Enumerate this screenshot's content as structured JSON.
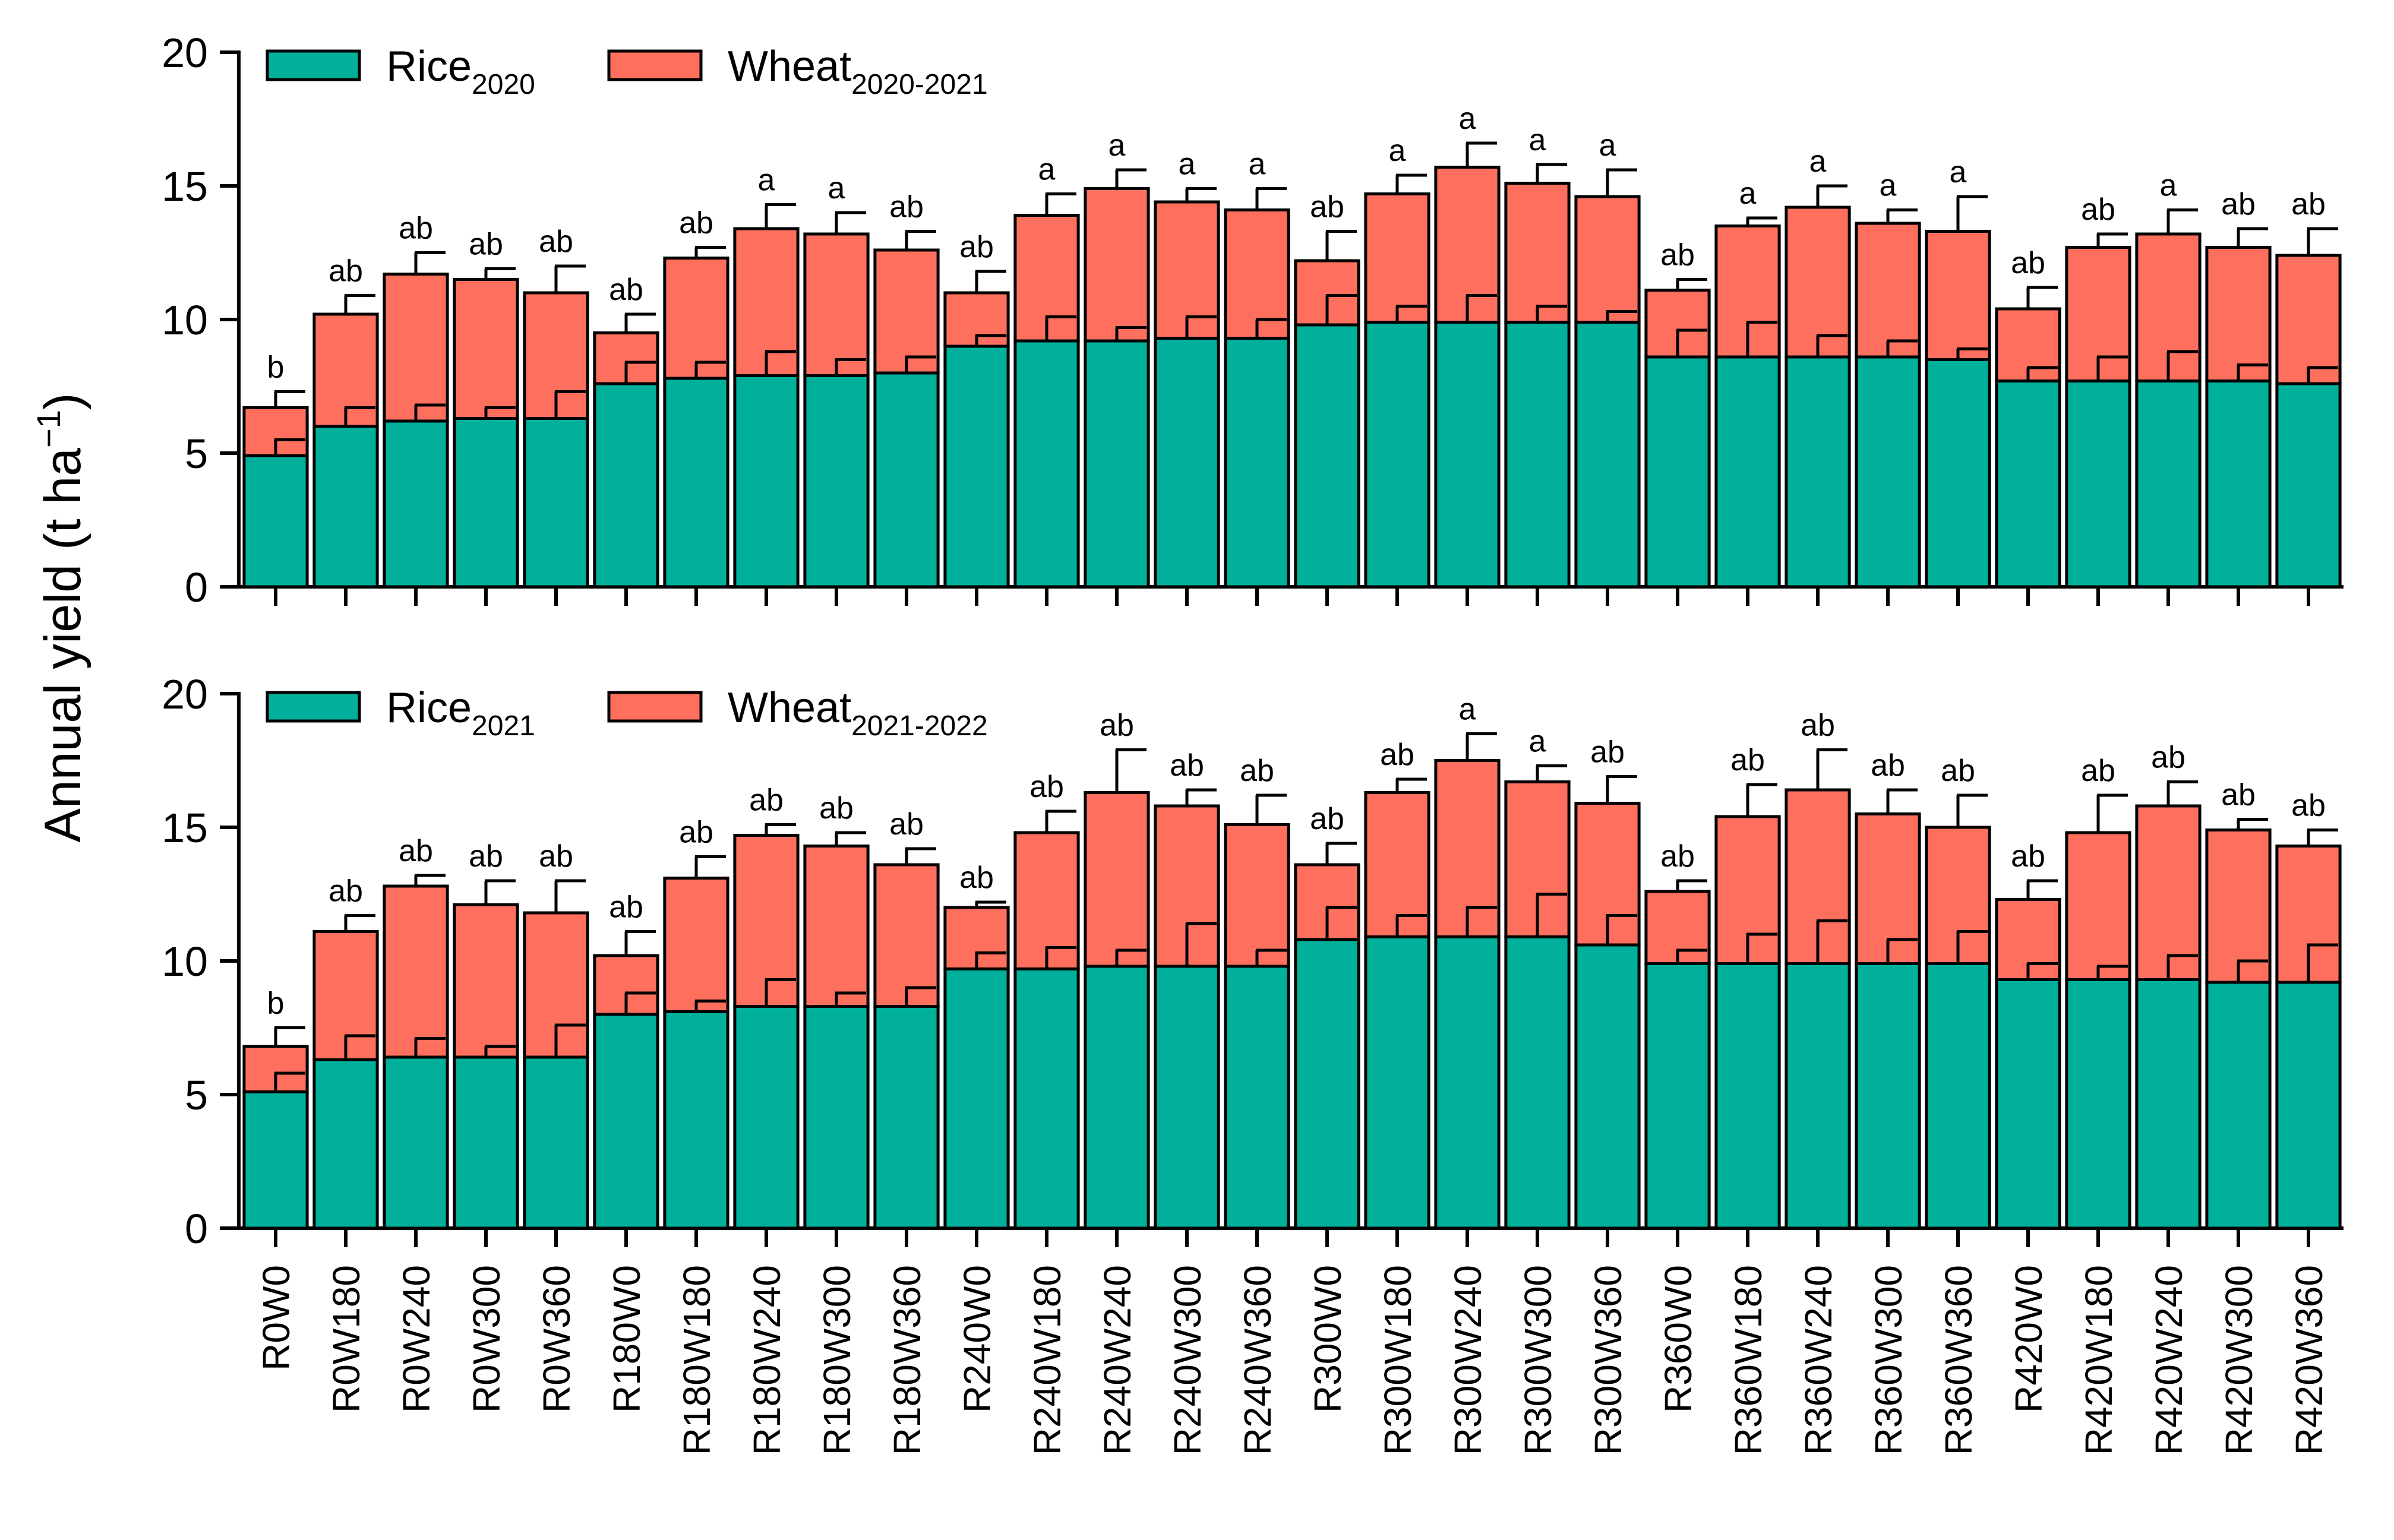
{
  "chart_data": {
    "type": "bar",
    "stacked": true,
    "ylabel": "Annual yield (t ha",
    "ylabel_sup": "−1",
    "ylabel_suffix": ")",
    "ylim": [
      0,
      20
    ],
    "yticks": [
      0,
      5,
      10,
      15,
      20
    ],
    "colors": {
      "rice": "#00B09B",
      "wheat": "#FF6F5E"
    },
    "categories": [
      "R0W0",
      "R0W180",
      "R0W240",
      "R0W300",
      "R0W360",
      "R180W0",
      "R180W180",
      "R180W240",
      "R180W300",
      "R180W360",
      "R240W0",
      "R240W180",
      "R240W240",
      "R240W300",
      "R240W360",
      "R300W0",
      "R300W180",
      "R300W240",
      "R300W300",
      "R300W360",
      "R360W0",
      "R360W180",
      "R360W240",
      "R360W300",
      "R360W360",
      "R420W0",
      "R420W180",
      "R420W240",
      "R420W300",
      "R420W360"
    ],
    "panels": [
      {
        "legend": [
          {
            "base": "Rice",
            "sub": "2020"
          },
          {
            "base": "Wheat",
            "sub": "2020-2021"
          }
        ],
        "series": [
          {
            "name": "Rice2020",
            "values": [
              4.9,
              6.0,
              6.2,
              6.3,
              6.3,
              7.6,
              7.8,
              7.9,
              7.9,
              8.0,
              9.0,
              9.2,
              9.2,
              9.3,
              9.3,
              9.8,
              9.9,
              9.9,
              9.9,
              9.9,
              8.6,
              8.6,
              8.6,
              8.6,
              8.5,
              7.7,
              7.7,
              7.7,
              7.7,
              7.6
            ],
            "errors": [
              0.6,
              0.7,
              0.6,
              0.4,
              1.0,
              0.8,
              0.6,
              0.9,
              0.6,
              0.6,
              0.4,
              0.9,
              0.5,
              0.8,
              0.7,
              1.1,
              0.6,
              1.0,
              0.6,
              0.4,
              1.0,
              1.3,
              0.8,
              0.6,
              0.4,
              0.5,
              0.9,
              1.1,
              0.6,
              0.6
            ]
          },
          {
            "name": "Wheat2020-2021",
            "values": [
              1.8,
              4.2,
              5.5,
              5.2,
              4.7,
              1.9,
              4.5,
              5.5,
              5.3,
              4.6,
              2.0,
              4.7,
              5.7,
              5.1,
              4.8,
              2.4,
              4.8,
              5.8,
              5.2,
              4.7,
              2.5,
              4.9,
              5.6,
              5.0,
              4.8,
              2.7,
              5.0,
              5.5,
              5.0,
              4.8
            ],
            "errors": [
              0.6,
              0.7,
              0.8,
              0.4,
              1.0,
              0.7,
              0.4,
              0.9,
              0.8,
              0.7,
              0.8,
              0.8,
              0.7,
              0.5,
              0.8,
              1.1,
              0.7,
              0.9,
              0.7,
              1.0,
              0.4,
              0.3,
              0.8,
              0.5,
              1.3,
              0.8,
              0.5,
              0.9,
              0.7,
              1.0
            ]
          }
        ],
        "significance": [
          "b",
          "ab",
          "ab",
          "ab",
          "ab",
          "ab",
          "ab",
          "a",
          "a",
          "ab",
          "ab",
          "a",
          "a",
          "a",
          "a",
          "ab",
          "a",
          "a",
          "a",
          "a",
          "ab",
          "a",
          "a",
          "a",
          "a",
          "ab",
          "ab",
          "a",
          "ab",
          "ab"
        ]
      },
      {
        "legend": [
          {
            "base": "Rice",
            "sub": "2021"
          },
          {
            "base": "Wheat",
            "sub": "2021-2022"
          }
        ],
        "series": [
          {
            "name": "Rice2021",
            "values": [
              5.1,
              6.3,
              6.4,
              6.4,
              6.4,
              8.0,
              8.1,
              8.3,
              8.3,
              8.3,
              9.7,
              9.7,
              9.8,
              9.8,
              9.8,
              10.8,
              10.9,
              10.9,
              10.9,
              10.6,
              9.9,
              9.9,
              9.9,
              9.9,
              9.9,
              9.3,
              9.3,
              9.3,
              9.2,
              9.2
            ],
            "errors": [
              0.7,
              0.9,
              0.7,
              0.4,
              1.2,
              0.8,
              0.4,
              1.0,
              0.5,
              0.7,
              0.6,
              0.8,
              0.6,
              1.6,
              0.6,
              1.2,
              0.8,
              1.1,
              1.6,
              1.1,
              0.5,
              1.1,
              1.6,
              0.9,
              1.2,
              0.6,
              0.5,
              0.9,
              0.8,
              1.4
            ]
          },
          {
            "name": "Wheat2021-2022",
            "values": [
              1.7,
              4.8,
              6.4,
              5.7,
              5.4,
              2.2,
              5.0,
              6.4,
              6.0,
              5.3,
              2.3,
              5.1,
              6.5,
              6.0,
              5.3,
              2.8,
              5.4,
              6.6,
              5.8,
              5.3,
              2.7,
              5.5,
              6.5,
              5.6,
              5.1,
              3.0,
              5.5,
              6.5,
              5.7,
              5.1
            ],
            "errors": [
              0.7,
              0.6,
              0.4,
              0.9,
              1.2,
              0.9,
              0.8,
              0.4,
              0.5,
              0.6,
              0.2,
              0.8,
              1.6,
              0.6,
              1.1,
              0.8,
              0.5,
              1.0,
              0.6,
              1.0,
              0.4,
              1.2,
              1.5,
              0.9,
              1.2,
              0.7,
              1.4,
              0.9,
              0.4,
              0.6
            ]
          }
        ],
        "significance": [
          "b",
          "ab",
          "ab",
          "ab",
          "ab",
          "ab",
          "ab",
          "ab",
          "ab",
          "ab",
          "ab",
          "ab",
          "ab",
          "ab",
          "ab",
          "ab",
          "ab",
          "a",
          "a",
          "ab",
          "ab",
          "ab",
          "ab",
          "ab",
          "ab",
          "ab",
          "ab",
          "ab",
          "ab",
          "ab"
        ]
      }
    ]
  }
}
